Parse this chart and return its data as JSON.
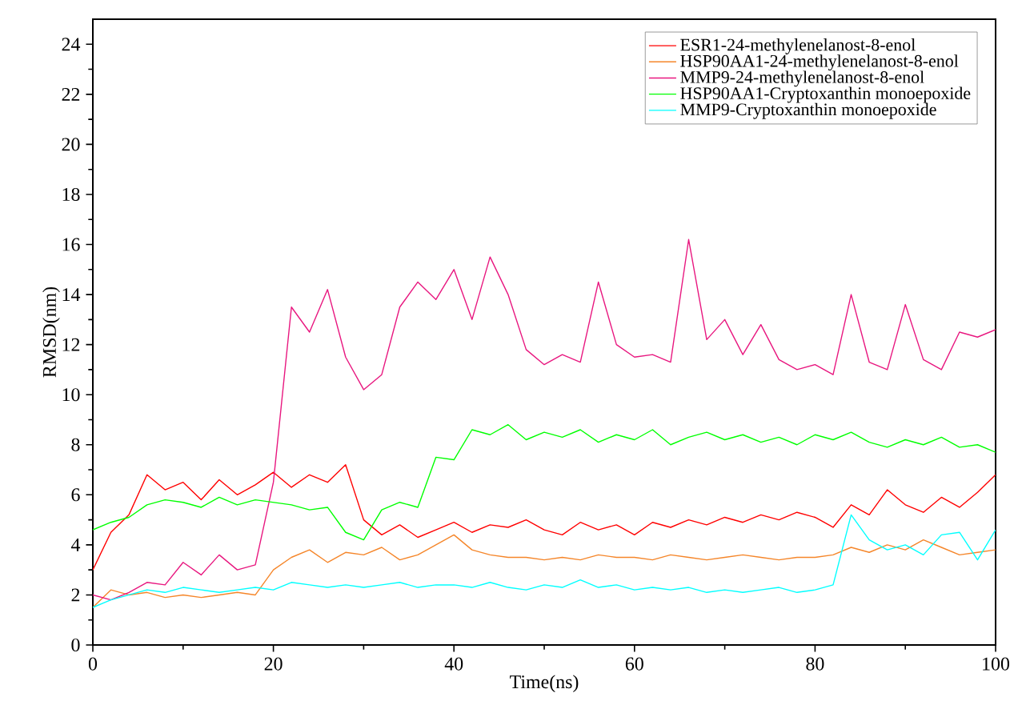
{
  "chart_data": {
    "type": "line",
    "xlabel": "Time(ns)",
    "ylabel": "RMSD(nm)",
    "xlim": [
      0,
      100
    ],
    "ylim": [
      0,
      25
    ],
    "xticks": [
      0,
      20,
      40,
      60,
      80,
      100
    ],
    "yticks": [
      0,
      2,
      4,
      6,
      8,
      10,
      12,
      14,
      16,
      18,
      20,
      22,
      24
    ],
    "grid": false,
    "legend": "top right",
    "marker": "none",
    "line_style": "solid",
    "x": [
      0,
      2,
      4,
      6,
      8,
      10,
      12,
      14,
      16,
      18,
      20,
      22,
      24,
      26,
      28,
      30,
      32,
      34,
      36,
      38,
      40,
      42,
      44,
      46,
      48,
      50,
      52,
      54,
      56,
      58,
      60,
      62,
      64,
      66,
      68,
      70,
      72,
      74,
      76,
      78,
      80,
      82,
      84,
      86,
      88,
      90,
      92,
      94,
      96,
      98,
      100
    ],
    "series": [
      {
        "name": "ESR1-24-methylenelanost-8-enol",
        "color": "#ff0000",
        "values": [
          3.0,
          4.5,
          5.2,
          6.8,
          6.2,
          6.5,
          5.8,
          6.6,
          6.0,
          6.4,
          6.9,
          6.3,
          6.8,
          6.5,
          7.2,
          5.0,
          4.4,
          4.8,
          4.3,
          4.6,
          4.9,
          4.5,
          4.8,
          4.7,
          5.0,
          4.6,
          4.4,
          4.9,
          4.6,
          4.8,
          4.4,
          4.9,
          4.7,
          5.0,
          4.8,
          5.1,
          4.9,
          5.2,
          5.0,
          5.3,
          5.1,
          4.7,
          5.6,
          5.2,
          6.2,
          5.6,
          5.3,
          5.9,
          5.5,
          6.1,
          6.8
        ]
      },
      {
        "name": "HSP90AA1-24-methylenelanost-8-enol",
        "color": "#f5862a",
        "values": [
          1.5,
          2.2,
          2.0,
          2.1,
          1.9,
          2.0,
          1.9,
          2.0,
          2.1,
          2.0,
          3.0,
          3.5,
          3.8,
          3.3,
          3.7,
          3.6,
          3.9,
          3.4,
          3.6,
          4.0,
          4.4,
          3.8,
          3.6,
          3.5,
          3.5,
          3.4,
          3.5,
          3.4,
          3.6,
          3.5,
          3.5,
          3.4,
          3.6,
          3.5,
          3.4,
          3.5,
          3.6,
          3.5,
          3.4,
          3.5,
          3.5,
          3.6,
          3.9,
          3.7,
          4.0,
          3.8,
          4.2,
          3.9,
          3.6,
          3.7,
          3.8
        ]
      },
      {
        "name": "MMP9-24-methylenelanost-8-enol",
        "color": "#e8177f",
        "values": [
          2.0,
          1.8,
          2.1,
          2.5,
          2.4,
          3.3,
          2.8,
          3.6,
          3.0,
          3.2,
          6.5,
          13.5,
          12.5,
          14.2,
          11.5,
          10.2,
          10.8,
          13.5,
          14.5,
          13.8,
          15.0,
          13.0,
          15.5,
          14.0,
          11.8,
          11.2,
          11.6,
          11.3,
          14.5,
          12.0,
          11.5,
          11.6,
          11.3,
          16.2,
          12.2,
          13.0,
          11.6,
          12.8,
          11.4,
          11.0,
          11.2,
          10.8,
          14.0,
          11.3,
          11.0,
          13.6,
          11.4,
          11.0,
          12.5,
          12.3,
          12.6
        ]
      },
      {
        "name": "HSP90AA1-Cryptoxanthin monoepoxide",
        "color": "#00ff00",
        "values": [
          4.6,
          4.9,
          5.1,
          5.6,
          5.8,
          5.7,
          5.5,
          5.9,
          5.6,
          5.8,
          5.7,
          5.6,
          5.4,
          5.5,
          4.5,
          4.2,
          5.4,
          5.7,
          5.5,
          7.5,
          7.4,
          8.6,
          8.4,
          8.8,
          8.2,
          8.5,
          8.3,
          8.6,
          8.1,
          8.4,
          8.2,
          8.6,
          8.0,
          8.3,
          8.5,
          8.2,
          8.4,
          8.1,
          8.3,
          8.0,
          8.4,
          8.2,
          8.5,
          8.1,
          7.9,
          8.2,
          8.0,
          8.3,
          7.9,
          8.0,
          7.7
        ]
      },
      {
        "name": "MMP9-Cryptoxanthin monoepoxide",
        "color": "#00ffff",
        "values": [
          1.5,
          1.8,
          2.0,
          2.2,
          2.1,
          2.3,
          2.2,
          2.1,
          2.2,
          2.3,
          2.2,
          2.5,
          2.4,
          2.3,
          2.4,
          2.3,
          2.4,
          2.5,
          2.3,
          2.4,
          2.4,
          2.3,
          2.5,
          2.3,
          2.2,
          2.4,
          2.3,
          2.6,
          2.3,
          2.4,
          2.2,
          2.3,
          2.2,
          2.3,
          2.1,
          2.2,
          2.1,
          2.2,
          2.3,
          2.1,
          2.2,
          2.4,
          5.2,
          4.2,
          3.8,
          4.0,
          3.6,
          4.4,
          4.5,
          3.4,
          4.6
        ]
      }
    ]
  }
}
